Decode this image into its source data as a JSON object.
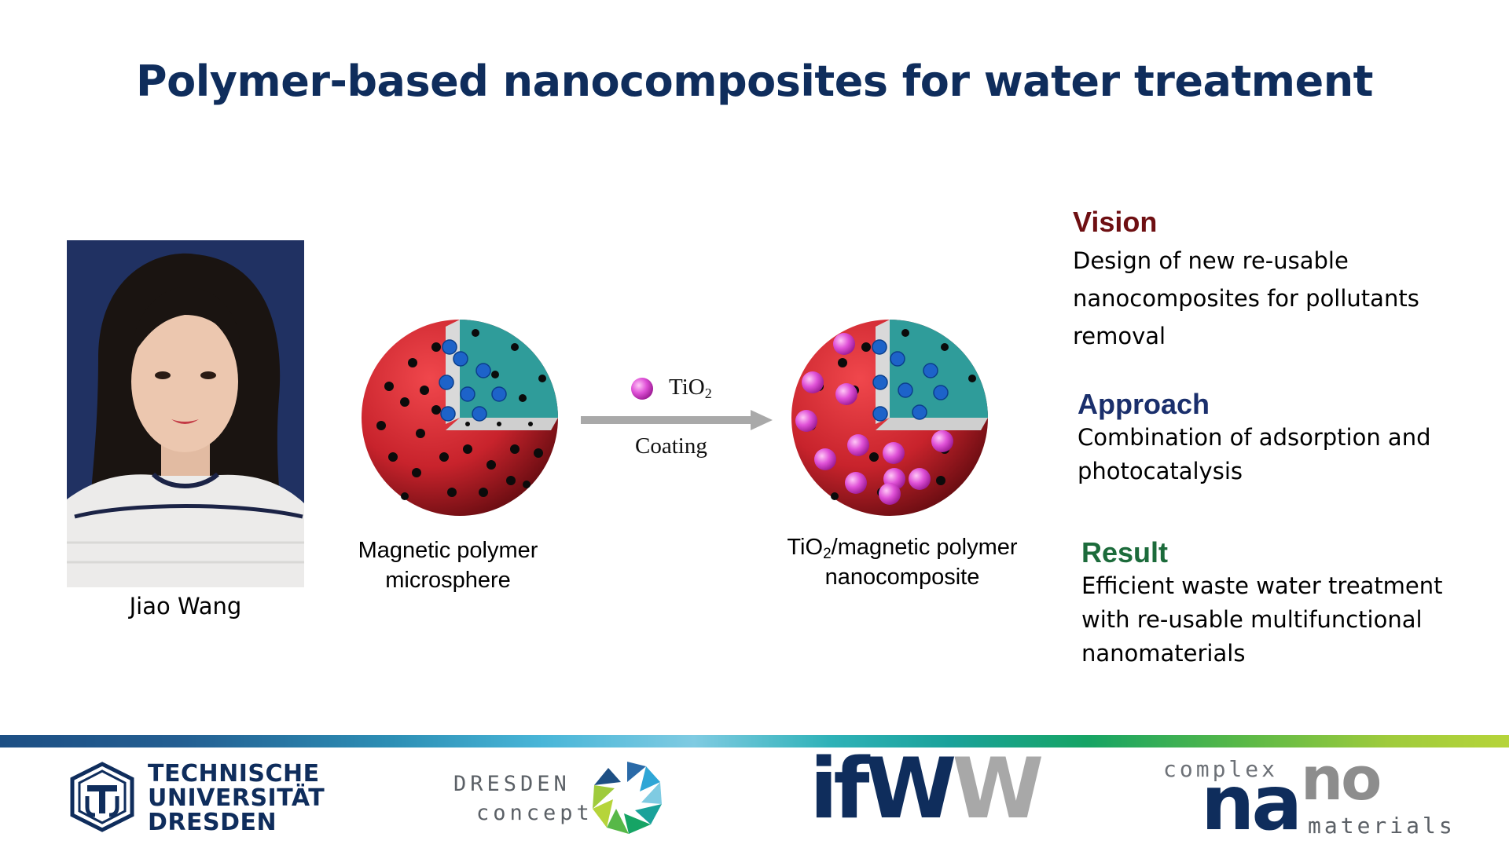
{
  "title": "Polymer-based nanocomposites for water treatment",
  "person": {
    "name": "Jiao Wang"
  },
  "diagram": {
    "left_caption_line1": "Magnetic polymer",
    "left_caption_line2": "microsphere",
    "legend_label_main": "TiO",
    "legend_label_sub": "2",
    "arrow_label": "Coating",
    "right_caption_main": "TiO",
    "right_caption_sub": "2",
    "right_caption_rest": "/magnetic polymer",
    "right_caption_line2": "nanocomposite",
    "colors": {
      "shell": "#c8232c",
      "core": "#2f9c9a",
      "pore": "#0b0b0b",
      "magnetic": "#1d63c9",
      "tio2": "#e052d8"
    }
  },
  "sections": {
    "vision": {
      "heading": "Vision",
      "lines": [
        "Design of new re-usable",
        "nanocomposites for pollutants",
        "removal"
      ],
      "color": "#6e0f12"
    },
    "approach": {
      "heading": "Approach",
      "lines": [
        "Combination of adsorption and",
        "photocatalysis"
      ],
      "color": "#1a2f6c"
    },
    "result": {
      "heading": "Result",
      "lines": [
        "Efficient waste water treatment",
        "with re-usable multifunctional",
        "nanomaterials"
      ],
      "color": "#1c6b3b"
    }
  },
  "logos": {
    "tud": {
      "line1": "TECHNISCHE",
      "line2": "UNIVERSITÄT",
      "line3": "DRESDEN"
    },
    "dresden_concept": {
      "line1": "DRESDEN",
      "line2": "concept"
    },
    "ifww": {
      "part1": "ifW",
      "part2": "W"
    },
    "complex_nano": {
      "complex": "complex",
      "na": "na",
      "no": "no",
      "materials": "materials"
    }
  }
}
